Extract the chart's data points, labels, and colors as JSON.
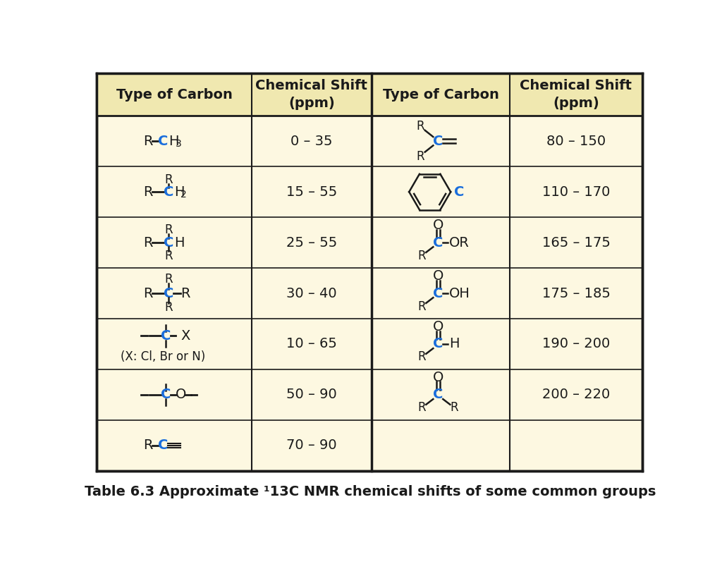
{
  "bg": "#fdf8e1",
  "header_bg": "#f0e8b0",
  "border_color": "#1a1a1a",
  "black": "#1a1a1a",
  "blue": "#1a6edc",
  "figsize": [
    10.24,
    8.17
  ],
  "dpi": 100,
  "caption": "Table 6.3 Approximate ¹13C NMR chemical shifts of some common groups",
  "left_shifts": [
    "0 – 35",
    "15 – 55",
    "25 – 55",
    "30 – 40",
    "10 – 65",
    "50 – 90",
    "70 – 90"
  ],
  "right_shifts": [
    "80 – 150",
    "110 – 170",
    "165 – 175",
    "175 – 185",
    "190 – 200",
    "200 – 220"
  ]
}
